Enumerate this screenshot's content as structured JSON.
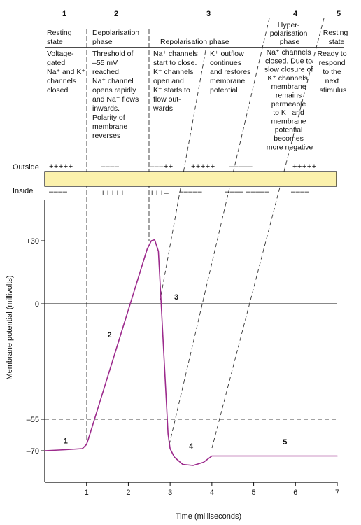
{
  "phases": [
    {
      "number": "1",
      "name": [
        "Resting",
        "state"
      ],
      "description": [
        "Voltage-",
        "gated",
        "Na⁺ and K⁺",
        "channels",
        "closed"
      ]
    },
    {
      "number": "2",
      "name": [
        "Depolarisation",
        "phase"
      ],
      "description": [
        "Threshold of",
        "–55 mV",
        "reached.",
        "Na⁺ channel",
        "opens rapidly",
        "and Na⁺ flows",
        "inwards.",
        "Polarity of",
        "membrane",
        "reverses"
      ]
    },
    {
      "number": "3",
      "name": [
        "Repolarisation phase"
      ],
      "description_a": [
        "Na⁺ channels",
        "start to close.",
        "K⁺ channels",
        "open and",
        "K⁺ starts to",
        "flow out-",
        "wards"
      ],
      "description_b": [
        "K⁺ outflow",
        "continues",
        "and restores",
        "membrane",
        "potential"
      ]
    },
    {
      "number": "4",
      "name": [
        "Hyper-",
        "polarisation",
        "phase"
      ],
      "description": [
        "Na⁺ channels",
        "closed. Due to",
        "slow closure of",
        "K⁺ channels,",
        "membrane",
        "remains",
        "permeable",
        "to K⁺ and",
        "membrane",
        "potential",
        "becomes",
        "more negative"
      ]
    },
    {
      "number": "5",
      "name": [
        "Resting",
        "state"
      ],
      "description": [
        "Ready to",
        "respond",
        "to the",
        "next",
        "stimulus"
      ]
    }
  ],
  "membrane": {
    "outside_label": "Outside",
    "inside_label": "Inside",
    "outside_charges": [
      "+++++",
      "––––",
      "–––++",
      "+++++",
      "–––––",
      "+++++",
      "+++++"
    ],
    "inside_charges": [
      "––––",
      "+++++",
      "+++–",
      "–––––",
      "––––",
      "–––––",
      "––––"
    ],
    "membrane_color": "#fbf1ac"
  },
  "chart_data": {
    "type": "line",
    "xlabel": "Time (milliseconds)",
    "ylabel": "Membrane potential (millivolts)",
    "x_ticks": [
      "1",
      "2",
      "3",
      "4",
      "5",
      "6",
      "7"
    ],
    "y_ticks": [
      "+30",
      "0",
      "–55",
      "–70"
    ],
    "xlim": [
      0,
      7
    ],
    "ylim": [
      -85,
      40
    ],
    "threshold": -55,
    "series": [
      {
        "color": "#9c2a8c",
        "x": [
          0,
          0.5,
          0.9,
          1.0,
          1.05,
          2.45,
          2.55,
          2.63,
          2.72,
          2.95,
          3.0,
          3.1,
          3.3,
          3.55,
          3.8,
          4.0,
          7.0
        ],
        "y": [
          -70,
          -69.5,
          -69,
          -67,
          -64,
          26,
          30,
          30.5,
          25,
          -62,
          -69,
          -73,
          -76.5,
          -77,
          -75.5,
          -72.5,
          -72.5
        ]
      }
    ],
    "curve_labels": [
      {
        "text": "1",
        "x": 0.5,
        "y": -66.5
      },
      {
        "text": "2",
        "x": 1.55,
        "y": -16
      },
      {
        "text": "3",
        "x": 3.15,
        "y": 2
      },
      {
        "text": "4",
        "x": 3.5,
        "y": -69
      },
      {
        "text": "5",
        "x": 5.75,
        "y": -67
      }
    ]
  }
}
